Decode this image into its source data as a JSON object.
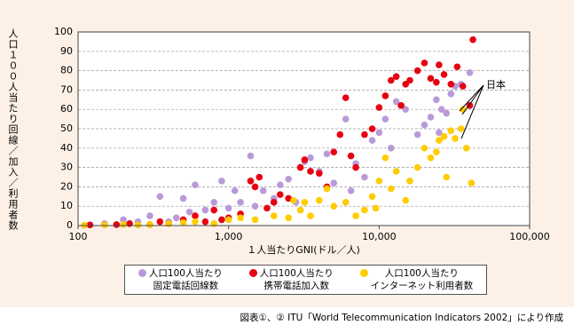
{
  "chart_data": {
    "type": "scatter",
    "y_label": "人口１００人当たり回線／加入／利用者数",
    "x_label": "１人当たりGNI(ドル／人)",
    "annotation": "日本",
    "caption": "図表①、② ITU「World Telecommunication Indicators 2002」により作成",
    "log_x": true,
    "grid": true,
    "xlim": [
      100,
      100000
    ],
    "xticks": [
      100,
      {
        "value": 1000,
        "label": "1,000"
      },
      {
        "value": 10000,
        "label": "10,000"
      },
      {
        "value": 100000,
        "label": "100,000"
      }
    ],
    "ylim": [
      0,
      100
    ],
    "yticks": [
      0,
      10,
      20,
      30,
      40,
      50,
      60,
      70,
      80,
      90,
      100
    ],
    "series": [
      {
        "name": "人口100人当たり\n固定電話回線数",
        "color": "#b99ad9",
        "x": [
          150,
          200,
          250,
          300,
          350,
          400,
          450,
          500,
          550,
          600,
          700,
          800,
          900,
          1000,
          1100,
          1200,
          1400,
          1500,
          1700,
          2000,
          2200,
          2500,
          2800,
          3000,
          3200,
          3500,
          4000,
          4500,
          5000,
          6000,
          6500,
          7000,
          8000,
          9000,
          10000,
          11000,
          12000,
          13000,
          15000,
          18000,
          20000,
          22000,
          24000,
          25000,
          26000,
          28000,
          30000,
          32000,
          35000,
          40000
        ],
        "values": [
          1,
          3,
          2,
          5,
          15,
          2,
          4,
          14,
          7,
          21,
          8,
          12,
          23,
          9,
          18,
          12,
          36,
          10,
          18,
          14,
          21,
          24,
          12,
          30,
          33,
          35,
          28,
          37,
          22,
          55,
          18,
          32,
          25,
          44,
          48,
          55,
          40,
          64,
          60,
          47,
          52,
          56,
          65,
          48,
          60,
          58,
          68,
          72,
          73,
          79
        ]
      },
      {
        "name": "人口100人当たり\n携帯電話加入数",
        "color": "#e60012",
        "x": [
          120,
          180,
          220,
          300,
          350,
          400,
          500,
          600,
          700,
          800,
          900,
          1000,
          1200,
          1400,
          1500,
          1600,
          1800,
          2000,
          2200,
          2500,
          3000,
          3200,
          3500,
          4000,
          4500,
          5000,
          5500,
          6000,
          6500,
          7000,
          8000,
          9000,
          10000,
          11000,
          12000,
          13000,
          14000,
          15000,
          16000,
          18000,
          20000,
          22000,
          24000,
          25000,
          27000,
          30000,
          33000,
          36000,
          40000,
          42000
        ],
        "values": [
          0.3,
          0.5,
          1,
          0.5,
          2,
          1,
          3,
          5,
          2,
          8,
          3,
          4,
          6,
          23,
          20,
          25,
          9,
          12,
          16,
          14,
          30,
          34,
          28,
          27,
          20,
          38,
          47,
          66,
          36,
          30,
          47,
          50,
          61,
          67,
          75,
          77,
          62,
          73,
          75,
          80,
          84,
          76,
          74,
          83,
          78,
          73,
          82,
          72,
          62,
          96
        ]
      },
      {
        "name": "人口100人当たり\nインターネット利用者数",
        "color": "#ffcc00",
        "x": [
          110,
          150,
          200,
          250,
          300,
          400,
          500,
          600,
          800,
          1000,
          1200,
          1500,
          2000,
          2500,
          2700,
          3000,
          3200,
          3500,
          4000,
          4500,
          5000,
          6000,
          7000,
          8000,
          9000,
          9500,
          10000,
          11000,
          12000,
          13000,
          15000,
          16000,
          18000,
          20000,
          22000,
          24000,
          25000,
          27000,
          28000,
          30000,
          32000,
          35000,
          36000,
          38000,
          41000
        ],
        "values": [
          0.2,
          0.3,
          0.5,
          0.3,
          0.5,
          1,
          1.5,
          2,
          1,
          3,
          4,
          3,
          5,
          4,
          13,
          8,
          12,
          5,
          13,
          19,
          10,
          12,
          5,
          8,
          15,
          9,
          23,
          35,
          19,
          28,
          13,
          23,
          30,
          40,
          35,
          38,
          44,
          46,
          25,
          49,
          45,
          50,
          60,
          40,
          22
        ]
      }
    ]
  }
}
